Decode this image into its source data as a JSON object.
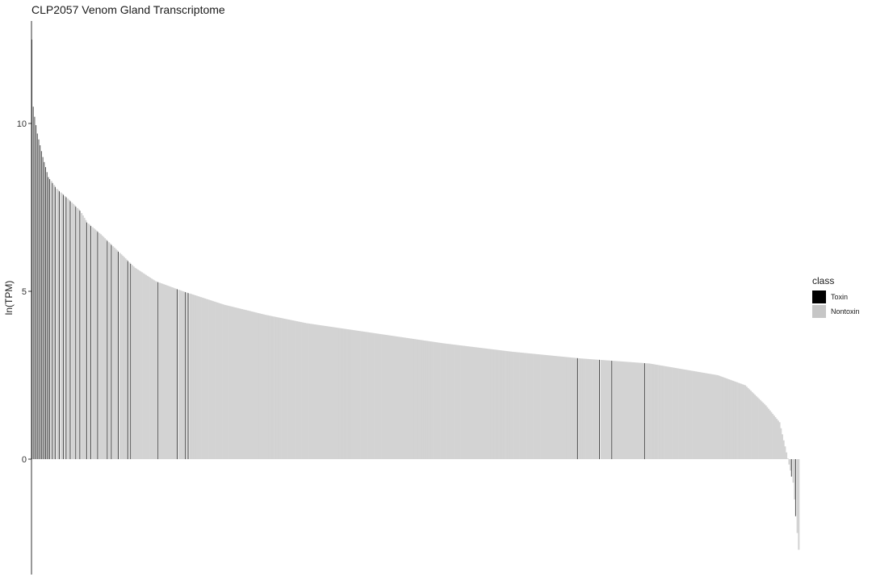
{
  "chart_data": {
    "type": "bar",
    "title": "CLP2057 Venom Gland Transcriptome",
    "xlabel": "",
    "ylabel": "ln(TPM)",
    "ylim": [
      -3.4,
      13.3
    ],
    "yticks": [
      0,
      5,
      10
    ],
    "grid": false,
    "legend": {
      "title": "class",
      "placement": "right",
      "entries": [
        {
          "name": "Toxin",
          "color": "#000000"
        },
        {
          "name": "Nontoxin",
          "color": "#c6c6c6"
        }
      ]
    },
    "colors": {
      "toxin": "#000000",
      "nontoxin": "#d3d3d3",
      "toxin_bar_alpha": 0.7
    },
    "n_transcripts": 560,
    "sorted_decreasing": true,
    "profile_rank": [
      0,
      1,
      2,
      4,
      8,
      12,
      18,
      25,
      35,
      40,
      50,
      60,
      75,
      90,
      110,
      140,
      170,
      200,
      250,
      300,
      350,
      400,
      450,
      500,
      520,
      535,
      545,
      550,
      555,
      559
    ],
    "profile_value": [
      12.5,
      10.5,
      10.2,
      9.7,
      9.0,
      8.4,
      8.05,
      7.8,
      7.4,
      7.05,
      6.7,
      6.3,
      5.7,
      5.3,
      5.0,
      4.6,
      4.3,
      4.05,
      3.75,
      3.45,
      3.2,
      3.0,
      2.85,
      2.5,
      2.2,
      1.6,
      1.1,
      0.2,
      -0.7,
      -2.7
    ],
    "toxin_ranks": [
      0,
      1,
      2,
      3,
      4,
      5,
      6,
      7,
      8,
      9,
      10,
      11,
      12,
      13,
      15,
      17,
      20,
      23,
      25,
      28,
      32,
      35,
      40,
      43,
      48,
      55,
      58,
      63,
      70,
      72,
      92,
      106,
      112,
      114,
      398,
      414,
      423,
      447,
      554,
      557
    ]
  }
}
